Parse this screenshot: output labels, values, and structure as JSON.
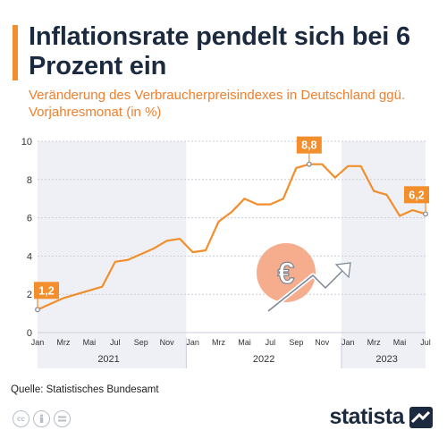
{
  "header": {
    "title": "Inflationsrate pendelt sich bei 6 Prozent ein",
    "subtitle": "Veränderung des Verbraucherpreisindexes in Deutschland ggü. Vorjahresmonat (in %)"
  },
  "footer": {
    "source": "Quelle: Statistisches Bundesamt",
    "brand": "statista"
  },
  "colors": {
    "accent": "#f28e2b",
    "line": "#f28e2b",
    "band": "#eef0f5",
    "title": "#1c2a3f"
  },
  "icons": [
    "cc-icon",
    "person-icon",
    "equals-icon",
    "euro-arrow-illustration",
    "statista-logo-icon"
  ],
  "chart_data": {
    "type": "line",
    "ylim": [
      0,
      10
    ],
    "yticks": [
      0,
      2,
      4,
      6,
      8,
      10
    ],
    "grid": true,
    "month_ticks": [
      "Jan",
      "Mrz",
      "Mai",
      "Jul",
      "Sep",
      "Nov",
      "Jan",
      "Mrz",
      "Mai",
      "Jul",
      "Sep",
      "Nov",
      "Jan",
      "Mrz",
      "Mai",
      "Jul"
    ],
    "month_tick_index": [
      0,
      2,
      4,
      6,
      8,
      10,
      12,
      14,
      16,
      18,
      20,
      22,
      24,
      26,
      28,
      30
    ],
    "years": [
      {
        "label": "2021",
        "start": 0,
        "end": 11
      },
      {
        "label": "2022",
        "start": 12,
        "end": 23
      },
      {
        "label": "2023",
        "start": 24,
        "end": 30
      }
    ],
    "x": [
      "2021-01",
      "2021-02",
      "2021-03",
      "2021-04",
      "2021-05",
      "2021-06",
      "2021-07",
      "2021-08",
      "2021-09",
      "2021-10",
      "2021-11",
      "2021-12",
      "2022-01",
      "2022-02",
      "2022-03",
      "2022-04",
      "2022-05",
      "2022-06",
      "2022-07",
      "2022-08",
      "2022-09",
      "2022-10",
      "2022-11",
      "2022-12",
      "2023-01",
      "2023-02",
      "2023-03",
      "2023-04",
      "2023-05",
      "2023-06",
      "2023-07"
    ],
    "values": [
      1.2,
      1.5,
      1.8,
      2.0,
      2.2,
      2.4,
      3.7,
      3.8,
      4.1,
      4.4,
      4.8,
      4.9,
      4.2,
      4.3,
      5.8,
      6.3,
      7.0,
      6.7,
      6.7,
      7.0,
      8.6,
      8.8,
      8.8,
      8.1,
      8.7,
      8.7,
      7.4,
      7.2,
      6.1,
      6.4,
      6.2
    ],
    "annotations": [
      {
        "index": 0,
        "label": "1,2"
      },
      {
        "index": 21,
        "label": "8,8"
      },
      {
        "index": 30,
        "label": "6,2"
      }
    ]
  }
}
